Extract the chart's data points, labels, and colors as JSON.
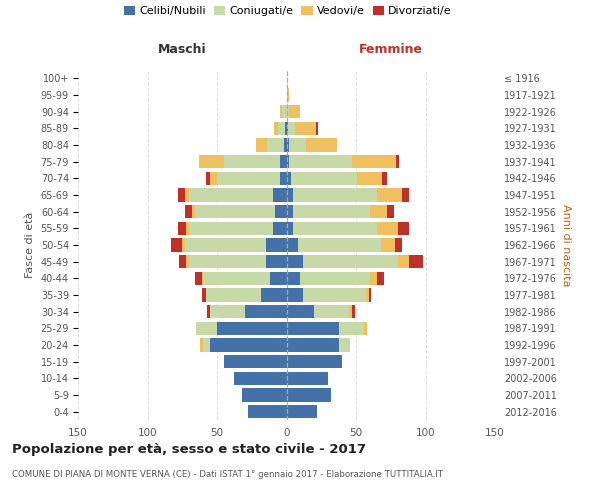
{
  "age_groups": [
    "0-4",
    "5-9",
    "10-14",
    "15-19",
    "20-24",
    "25-29",
    "30-34",
    "35-39",
    "40-44",
    "45-49",
    "50-54",
    "55-59",
    "60-64",
    "65-69",
    "70-74",
    "75-79",
    "80-84",
    "85-89",
    "90-94",
    "95-99",
    "100+"
  ],
  "birth_years": [
    "2012-2016",
    "2007-2011",
    "2002-2006",
    "1997-2001",
    "1992-1996",
    "1987-1991",
    "1982-1986",
    "1977-1981",
    "1972-1976",
    "1967-1971",
    "1962-1966",
    "1957-1961",
    "1952-1956",
    "1947-1951",
    "1942-1946",
    "1937-1941",
    "1932-1936",
    "1927-1931",
    "1922-1926",
    "1917-1921",
    "≤ 1916"
  ],
  "maschi_celibi": [
    28,
    32,
    38,
    45,
    55,
    50,
    30,
    18,
    12,
    15,
    15,
    10,
    8,
    10,
    5,
    5,
    2,
    1,
    0,
    0,
    0
  ],
  "maschi_coniugati": [
    0,
    0,
    0,
    0,
    5,
    15,
    25,
    40,
    48,
    55,
    58,
    60,
    58,
    60,
    45,
    40,
    12,
    5,
    3,
    0,
    0
  ],
  "maschi_vedovi": [
    0,
    0,
    0,
    0,
    2,
    0,
    0,
    0,
    1,
    2,
    2,
    2,
    2,
    3,
    5,
    18,
    8,
    3,
    2,
    0,
    0
  ],
  "maschi_divorziati": [
    0,
    0,
    0,
    0,
    0,
    0,
    2,
    3,
    5,
    5,
    8,
    6,
    5,
    5,
    3,
    0,
    0,
    0,
    0,
    0,
    0
  ],
  "femmine_nubili": [
    22,
    32,
    30,
    40,
    38,
    38,
    20,
    12,
    10,
    12,
    8,
    5,
    5,
    5,
    3,
    2,
    2,
    1,
    0,
    0,
    0
  ],
  "femmine_coniugate": [
    0,
    0,
    0,
    0,
    8,
    18,
    25,
    45,
    50,
    68,
    60,
    60,
    55,
    60,
    48,
    45,
    12,
    5,
    2,
    0,
    0
  ],
  "femmine_vedove": [
    0,
    0,
    0,
    0,
    0,
    2,
    2,
    2,
    5,
    8,
    10,
    15,
    12,
    18,
    18,
    32,
    22,
    15,
    8,
    2,
    0
  ],
  "femmine_divorziate": [
    0,
    0,
    0,
    0,
    0,
    0,
    2,
    2,
    5,
    10,
    5,
    8,
    5,
    5,
    3,
    2,
    0,
    2,
    0,
    0,
    0
  ],
  "col_celibi": "#4472a8",
  "col_coniugati": "#c8d9a8",
  "col_vedovi": "#f0c060",
  "col_divorziati": "#c0302a",
  "legend_labels": [
    "Celibi/Nubili",
    "Coniugati/e",
    "Vedovi/e",
    "Divorziati/e"
  ],
  "title": "Popolazione per età, sesso e stato civile - 2017",
  "subtitle": "COMUNE DI PIANA DI MONTE VERNA (CE) - Dati ISTAT 1° gennaio 2017 - Elaborazione TUTTITALIA.IT",
  "label_maschi": "Maschi",
  "label_femmine": "Femmine",
  "ylabel_left": "Fasce di età",
  "ylabel_right": "Anni di nascita",
  "xlim": 150,
  "bg": "#ffffff",
  "grid_color": "#dddddd",
  "text_color": "#555555"
}
